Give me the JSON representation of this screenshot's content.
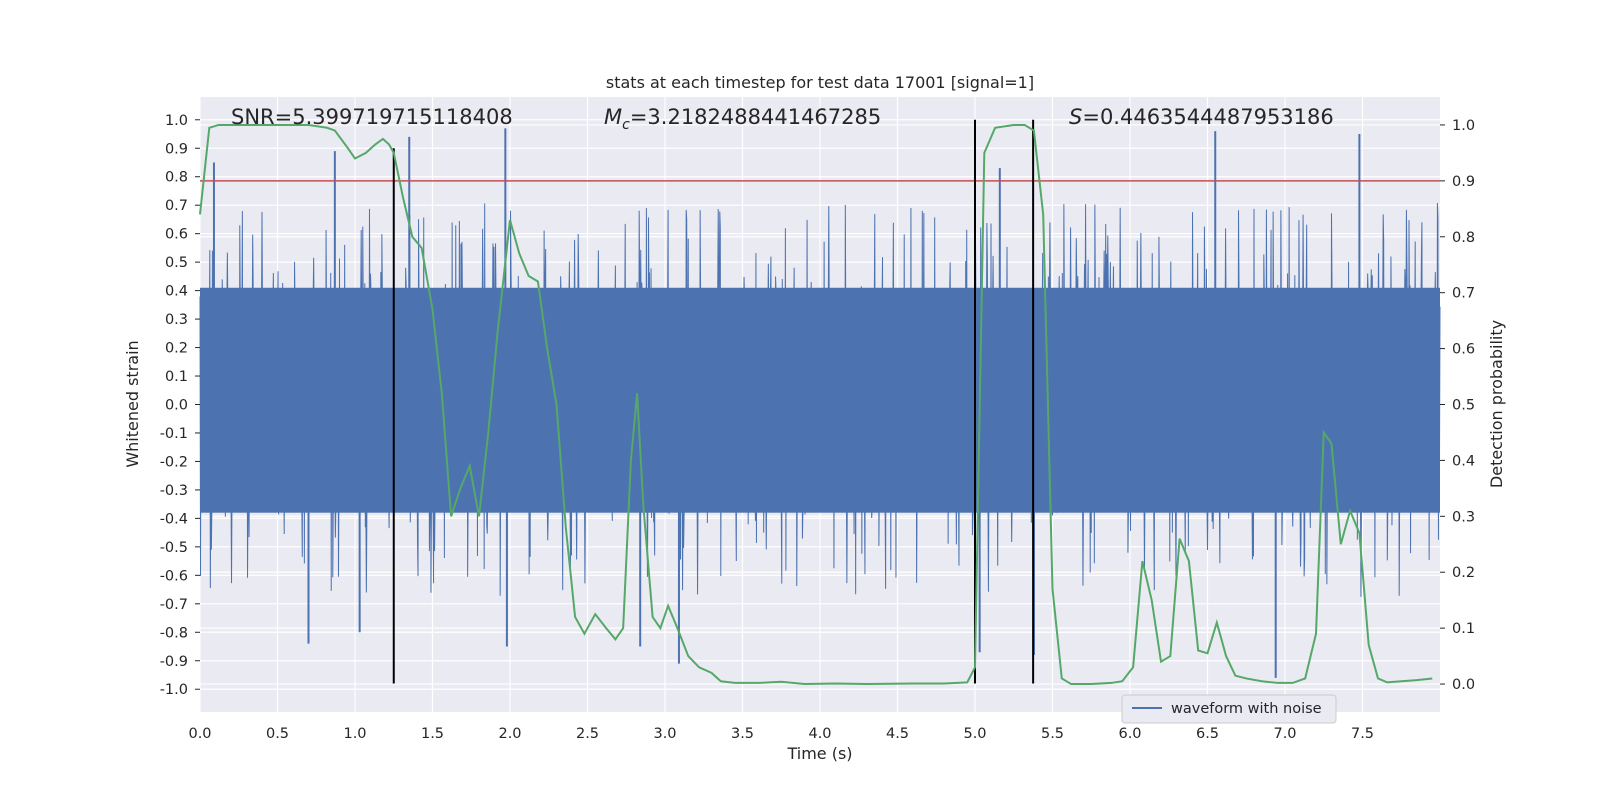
{
  "chart_data": {
    "type": "line",
    "title": "stats at each timestep for test data 17001 [signal=1]",
    "xlabel": "Time (s)",
    "ylabel_left": "Whitened strain",
    "ylabel_right": "Detection probability",
    "xlim": [
      0.0,
      8.0
    ],
    "ylim_left": [
      -1.08,
      1.08
    ],
    "ylim_right": [
      -0.05,
      1.05
    ],
    "xticks": [
      "0.0",
      "0.5",
      "1.0",
      "1.5",
      "2.0",
      "2.5",
      "3.0",
      "3.5",
      "4.0",
      "4.5",
      "5.0",
      "5.5",
      "6.0",
      "6.5",
      "7.0",
      "7.5"
    ],
    "xtick_values": [
      0.0,
      0.5,
      1.0,
      1.5,
      2.0,
      2.5,
      3.0,
      3.5,
      4.0,
      4.5,
      5.0,
      5.5,
      6.0,
      6.5,
      7.0,
      7.5
    ],
    "yticks_left": [
      "1.0",
      "0.9",
      "0.8",
      "0.7",
      "0.6",
      "0.5",
      "0.4",
      "0.3",
      "0.2",
      "0.1",
      "0.0",
      "-0.1",
      "-0.2",
      "-0.3",
      "-0.4",
      "-0.5",
      "-0.6",
      "-0.7",
      "-0.8",
      "-0.9",
      "-1.0"
    ],
    "ytick_values_left": [
      1.0,
      0.9,
      0.8,
      0.7,
      0.6,
      0.5,
      0.4,
      0.3,
      0.2,
      0.1,
      0.0,
      -0.1,
      -0.2,
      -0.3,
      -0.4,
      -0.5,
      -0.6,
      -0.7,
      -0.8,
      -0.9,
      -1.0
    ],
    "yticks_right": [
      "1.0",
      "0.9",
      "0.8",
      "0.7",
      "0.6",
      "0.5",
      "0.4",
      "0.3",
      "0.2",
      "0.1",
      "0.0"
    ],
    "ytick_values_right": [
      1.0,
      0.9,
      0.8,
      0.7,
      0.6,
      0.5,
      0.4,
      0.3,
      0.2,
      0.1,
      0.0
    ],
    "annotations": {
      "snr": "SNR=5.399719715118408",
      "mc_symbol": "M",
      "mc_subscript": "c",
      "mc_value": "=3.2182488441467285",
      "s_symbol": "S",
      "s_value": "=0.4463544487953186"
    },
    "legend": {
      "label": "waveform with noise",
      "position": "lower right"
    },
    "grid": true,
    "colors": {
      "waveform": "#4c72b0",
      "probability": "#55a868",
      "threshold": "#c44e52",
      "markers": "#000000",
      "background": "#eaeaf2",
      "grid": "#ffffff"
    },
    "threshold_line": {
      "axis": "right",
      "y": 0.9
    },
    "vertical_markers": [
      {
        "x": 1.25,
        "y_bottom": -0.98,
        "y_top": 0.9
      },
      {
        "x": 5.0,
        "y_bottom": -0.98,
        "y_top": 1.0
      },
      {
        "x": 5.375,
        "y_bottom": -0.98,
        "y_top": 1.0
      }
    ],
    "series": [
      {
        "name": "waveform with noise",
        "axis": "left",
        "description": "dense whitened strain, approx 4096 samples; values mostly within ±0.4 with spikes up to about ±0.9",
        "envelope_typical": [
          -0.38,
          0.41
        ],
        "peaks": [
          {
            "x": 0.09,
            "y": 0.85
          },
          {
            "x": 0.87,
            "y": 0.89
          },
          {
            "x": 1.35,
            "y": 0.94
          },
          {
            "x": 1.97,
            "y": 0.97
          },
          {
            "x": 5.16,
            "y": 0.83
          },
          {
            "x": 6.55,
            "y": 0.96
          },
          {
            "x": 7.48,
            "y": 0.95
          },
          {
            "x": 0.7,
            "y": -0.84
          },
          {
            "x": 1.03,
            "y": -0.8
          },
          {
            "x": 1.98,
            "y": -0.85
          },
          {
            "x": 2.84,
            "y": -0.85
          },
          {
            "x": 3.09,
            "y": -0.91
          },
          {
            "x": 5.03,
            "y": -0.87
          },
          {
            "x": 5.38,
            "y": -0.88
          },
          {
            "x": 6.94,
            "y": -0.96
          }
        ]
      },
      {
        "name": "",
        "axis": "right",
        "points": [
          [
            0.0,
            0.84
          ],
          [
            0.06,
            0.995
          ],
          [
            0.12,
            1.0
          ],
          [
            0.3,
            1.0
          ],
          [
            0.5,
            1.0
          ],
          [
            0.7,
            1.0
          ],
          [
            0.82,
            0.995
          ],
          [
            0.87,
            0.99
          ],
          [
            0.95,
            0.96
          ],
          [
            1.0,
            0.94
          ],
          [
            1.07,
            0.95
          ],
          [
            1.13,
            0.965
          ],
          [
            1.18,
            0.975
          ],
          [
            1.22,
            0.965
          ],
          [
            1.25,
            0.95
          ],
          [
            1.31,
            0.87
          ],
          [
            1.37,
            0.8
          ],
          [
            1.43,
            0.78
          ],
          [
            1.5,
            0.67
          ],
          [
            1.56,
            0.52
          ],
          [
            1.62,
            0.3
          ],
          [
            1.68,
            0.35
          ],
          [
            1.74,
            0.39
          ],
          [
            1.8,
            0.3
          ],
          [
            1.86,
            0.45
          ],
          [
            1.92,
            0.63
          ],
          [
            2.0,
            0.83
          ],
          [
            2.06,
            0.77
          ],
          [
            2.12,
            0.73
          ],
          [
            2.18,
            0.72
          ],
          [
            2.24,
            0.6
          ],
          [
            2.3,
            0.5
          ],
          [
            2.36,
            0.28
          ],
          [
            2.42,
            0.12
          ],
          [
            2.48,
            0.09
          ],
          [
            2.55,
            0.125
          ],
          [
            2.62,
            0.1
          ],
          [
            2.68,
            0.08
          ],
          [
            2.73,
            0.1
          ],
          [
            2.78,
            0.4
          ],
          [
            2.82,
            0.52
          ],
          [
            2.86,
            0.32
          ],
          [
            2.92,
            0.12
          ],
          [
            2.97,
            0.1
          ],
          [
            3.02,
            0.14
          ],
          [
            3.08,
            0.1
          ],
          [
            3.15,
            0.05
          ],
          [
            3.22,
            0.03
          ],
          [
            3.3,
            0.02
          ],
          [
            3.36,
            0.005
          ],
          [
            3.45,
            0.002
          ],
          [
            3.6,
            0.002
          ],
          [
            3.75,
            0.004
          ],
          [
            3.9,
            0.0
          ],
          [
            4.1,
            0.001
          ],
          [
            4.3,
            0.0
          ],
          [
            4.6,
            0.001
          ],
          [
            4.8,
            0.001
          ],
          [
            4.95,
            0.003
          ],
          [
            5.0,
            0.03
          ],
          [
            5.06,
            0.95
          ],
          [
            5.13,
            0.995
          ],
          [
            5.25,
            1.0
          ],
          [
            5.32,
            1.0
          ],
          [
            5.38,
            0.99
          ],
          [
            5.44,
            0.84
          ],
          [
            5.5,
            0.17
          ],
          [
            5.56,
            0.01
          ],
          [
            5.62,
            0.0
          ],
          [
            5.75,
            0.0
          ],
          [
            5.88,
            0.002
          ],
          [
            5.95,
            0.005
          ],
          [
            6.02,
            0.03
          ],
          [
            6.08,
            0.22
          ],
          [
            6.14,
            0.15
          ],
          [
            6.2,
            0.04
          ],
          [
            6.26,
            0.05
          ],
          [
            6.32,
            0.26
          ],
          [
            6.38,
            0.22
          ],
          [
            6.44,
            0.06
          ],
          [
            6.5,
            0.055
          ],
          [
            6.56,
            0.11
          ],
          [
            6.62,
            0.05
          ],
          [
            6.68,
            0.015
          ],
          [
            6.75,
            0.01
          ],
          [
            6.85,
            0.005
          ],
          [
            6.95,
            0.002
          ],
          [
            7.05,
            0.002
          ],
          [
            7.13,
            0.01
          ],
          [
            7.2,
            0.09
          ],
          [
            7.25,
            0.45
          ],
          [
            7.3,
            0.43
          ],
          [
            7.36,
            0.25
          ],
          [
            7.42,
            0.31
          ],
          [
            7.48,
            0.27
          ],
          [
            7.54,
            0.07
          ],
          [
            7.6,
            0.01
          ],
          [
            7.66,
            0.003
          ],
          [
            7.75,
            0.005
          ],
          [
            7.85,
            0.007
          ],
          [
            7.95,
            0.01
          ]
        ]
      }
    ]
  }
}
